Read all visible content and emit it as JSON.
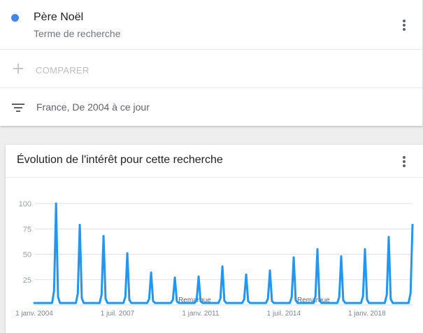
{
  "term": {
    "name": "Père Noël",
    "subtitle": "Terme de recherche",
    "color": "#4285f4",
    "menu_icon": "more-vert-icon"
  },
  "compare": {
    "icon": "plus-icon",
    "label": "COMPARER"
  },
  "filter": {
    "icon": "filter-list-icon",
    "label": "France, De 2004 à ce jour"
  },
  "chart_card": {
    "title": "Évolution de l'intérêt pour cette recherche",
    "menu_icon": "more-vert-icon"
  },
  "chart_data": {
    "type": "line",
    "title": "Évolution de l'intérêt pour cette recherche",
    "xlabel": "",
    "ylabel": "",
    "ylim": [
      0,
      100
    ],
    "yticks": [
      25,
      50,
      75,
      100
    ],
    "grid": true,
    "line_color": "#2196f3",
    "xlim": [
      "2004-01",
      "2019-12"
    ],
    "xtick_labels": [
      {
        "label": "1 janv. 2004",
        "x": "2004-01"
      },
      {
        "label": "1 juil. 2007",
        "x": "2007-07"
      },
      {
        "label": "1 janv. 2011",
        "x": "2011-01"
      },
      {
        "label": "1 juil. 2014",
        "x": "2014-07"
      },
      {
        "label": "1 janv. 2018",
        "x": "2018-01"
      }
    ],
    "annotations": [
      {
        "text": "Remarque",
        "x": "2010-10"
      },
      {
        "text": "Remarque",
        "x": "2015-10"
      }
    ],
    "series": [
      {
        "baseline": 2,
        "peaks": [
          {
            "x": "2004-12",
            "y": 100
          },
          {
            "x": "2005-12",
            "y": 79
          },
          {
            "x": "2006-12",
            "y": 68
          },
          {
            "x": "2007-12",
            "y": 51
          },
          {
            "x": "2008-12",
            "y": 32
          },
          {
            "x": "2009-12",
            "y": 27
          },
          {
            "x": "2010-12",
            "y": 28
          },
          {
            "x": "2011-12",
            "y": 38
          },
          {
            "x": "2012-12",
            "y": 30
          },
          {
            "x": "2013-12",
            "y": 34
          },
          {
            "x": "2014-12",
            "y": 47
          },
          {
            "x": "2015-12",
            "y": 55
          },
          {
            "x": "2016-12",
            "y": 48
          },
          {
            "x": "2017-12",
            "y": 55
          },
          {
            "x": "2018-12",
            "y": 67
          },
          {
            "x": "2019-12",
            "y": 79
          }
        ]
      }
    ]
  }
}
